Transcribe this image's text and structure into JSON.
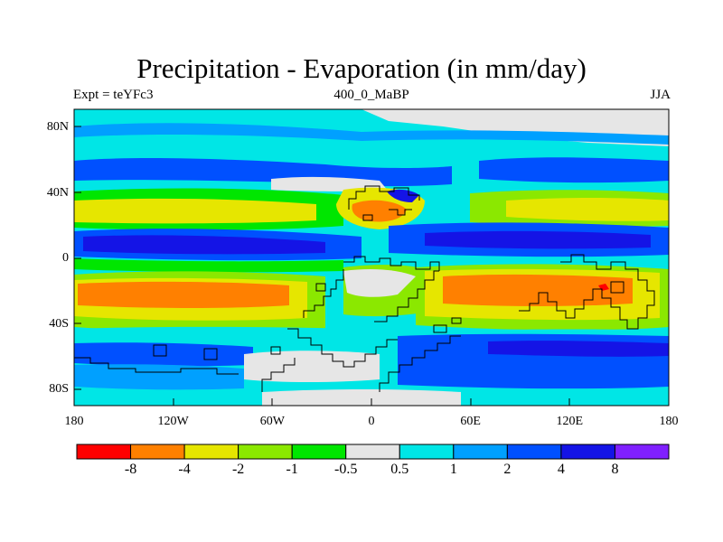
{
  "title": "Precipitation - Evaporation (in mm/day)",
  "left_subtitle": "Expt = teYFc3",
  "center_subtitle": "400_0_MaBP",
  "right_subtitle": "JJA",
  "y_ticks": [
    {
      "label": "80N",
      "value": 80
    },
    {
      "label": "40N",
      "value": 40
    },
    {
      "label": "0",
      "value": 0
    },
    {
      "label": "40S",
      "value": -40
    },
    {
      "label": "80S",
      "value": -80
    }
  ],
  "x_ticks": [
    {
      "label": "180",
      "value": -180
    },
    {
      "label": "120W",
      "value": -120
    },
    {
      "label": "60W",
      "value": -60
    },
    {
      "label": "0",
      "value": 0
    },
    {
      "label": "60E",
      "value": 60
    },
    {
      "label": "120E",
      "value": 120
    },
    {
      "label": "180",
      "value": 180
    }
  ],
  "colorbar": {
    "colors": [
      "#ff0000",
      "#ff8000",
      "#e6e600",
      "#8be800",
      "#00e600",
      "#e6e6e6",
      "#00e6e6",
      "#00a0ff",
      "#0050ff",
      "#1414e6",
      "#8020ff"
    ],
    "labels": [
      "-8",
      "-4",
      "-2",
      "-1",
      "-0.5",
      "0.5",
      "1",
      "2",
      "4",
      "8"
    ]
  },
  "palette": {
    "strong_dry": "#ff8000",
    "dry": "#e6e600",
    "moderate_dry": "#8be800",
    "weak_dry": "#00e600",
    "neutral": "#e6e6e6",
    "weak_wet": "#00e6e6",
    "wet": "#00a0ff",
    "moderate_wet": "#0050ff",
    "strong_wet": "#1414e6",
    "extreme_wet": "#8020ff",
    "extreme_dry": "#ff0000"
  }
}
